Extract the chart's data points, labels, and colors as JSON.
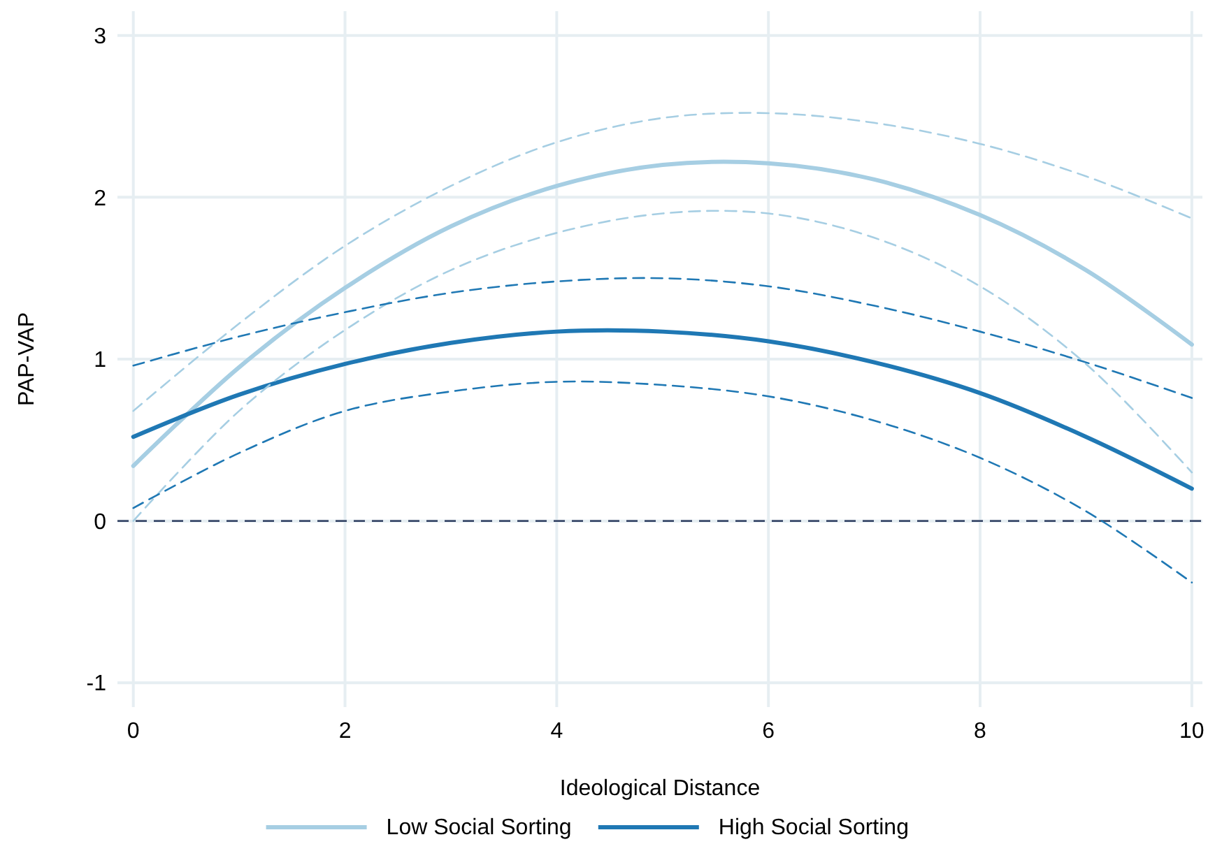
{
  "chart_data": {
    "type": "line",
    "xlabel": "Ideological Distance",
    "ylabel": "PAP-VAP",
    "x": [
      0,
      1,
      2,
      3,
      4,
      5,
      6,
      7,
      8,
      9,
      10
    ],
    "series": [
      {
        "name": "Low Social Sorting",
        "color": "#a6cee3",
        "values": [
          0.34,
          0.95,
          1.44,
          1.82,
          2.07,
          2.2,
          2.21,
          2.11,
          1.89,
          1.55,
          1.09
        ]
      },
      {
        "name": "High Social Sorting",
        "color": "#1f78b4",
        "values": [
          0.52,
          0.78,
          0.97,
          1.1,
          1.17,
          1.17,
          1.11,
          0.98,
          0.79,
          0.52,
          0.2
        ]
      },
      {
        "color": "#a6cee3",
        "line_style": "dashed",
        "values": [
          0.68,
          1.22,
          1.7,
          2.07,
          2.34,
          2.49,
          2.52,
          2.46,
          2.33,
          2.13,
          1.87
        ]
      },
      {
        "color": "#a6cee3",
        "line_style": "dashed",
        "values": [
          0.0,
          0.68,
          1.18,
          1.55,
          1.78,
          1.9,
          1.9,
          1.75,
          1.45,
          0.97,
          0.3
        ]
      },
      {
        "color": "#1f78b4",
        "line_style": "dashed",
        "values": [
          0.96,
          1.14,
          1.29,
          1.41,
          1.48,
          1.5,
          1.45,
          1.33,
          1.17,
          0.98,
          0.76
        ]
      },
      {
        "color": "#1f78b4",
        "line_style": "dashed",
        "values": [
          0.08,
          0.42,
          0.68,
          0.8,
          0.86,
          0.84,
          0.77,
          0.62,
          0.39,
          0.06,
          -0.38
        ]
      }
    ],
    "xlim": [
      -0.15,
      10.1
    ],
    "xticks": [
      0,
      2,
      4,
      6,
      8,
      10
    ],
    "ylim": [
      -1.15,
      3.15
    ],
    "yticks": [
      -1,
      0,
      1,
      2,
      3
    ],
    "ref_lines": [
      {
        "axis": "y",
        "value": 0,
        "color": "#3b4a6b",
        "line_style": "dashed"
      }
    ],
    "grid": true,
    "legend": "bottom",
    "marker": "none",
    "line_style": "solid"
  }
}
